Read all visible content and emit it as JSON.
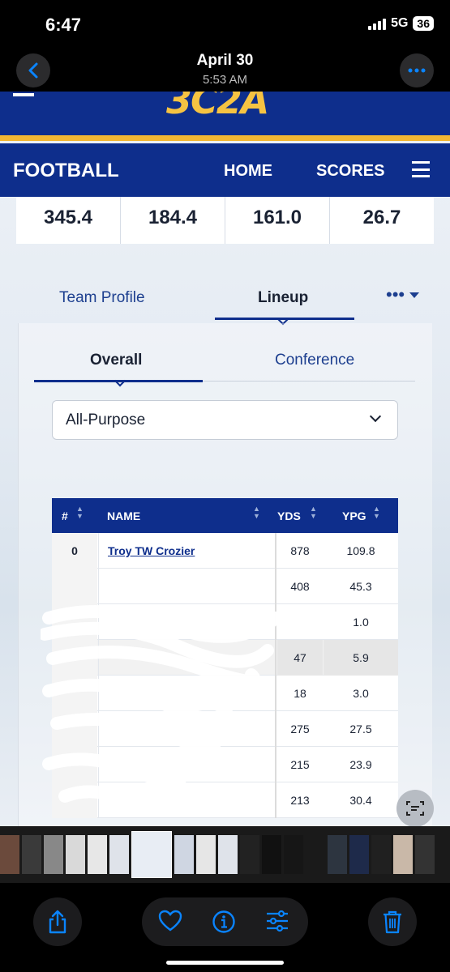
{
  "status_bar": {
    "time": "6:47",
    "network": "5G",
    "battery": "36"
  },
  "photos_header": {
    "title": "April 30",
    "subtitle": "5:53 AM"
  },
  "site": {
    "logo": "3C2A",
    "sport": "FOOTBALL",
    "nav": {
      "home": "HOME",
      "scores": "SCORES"
    },
    "stats": [
      "345.4",
      "184.4",
      "161.0",
      "26.7"
    ],
    "tabs": {
      "profile": "Team Profile",
      "lineup": "Lineup",
      "more": "•••"
    },
    "subtabs": {
      "overall": "Overall",
      "conference": "Conference"
    },
    "select_value": "All-Purpose",
    "table": {
      "headers": {
        "num": "#",
        "name": "NAME",
        "yds": "YDS",
        "ypg": "YPG"
      },
      "rows": [
        {
          "num": "0",
          "name": "Troy TW Crozier",
          "yds": "878",
          "ypg": "109.8"
        },
        {
          "num": "",
          "name": "",
          "yds": "408",
          "ypg": "45.3"
        },
        {
          "num": "",
          "name": "",
          "yds": "",
          "ypg": "1.0"
        },
        {
          "num": "",
          "name": "",
          "yds": "47",
          "ypg": "5.9"
        },
        {
          "num": "",
          "name": "",
          "yds": "18",
          "ypg": "3.0"
        },
        {
          "num": "",
          "name": "",
          "yds": "275",
          "ypg": "27.5"
        },
        {
          "num": "",
          "name": "",
          "yds": "215",
          "ypg": "23.9"
        },
        {
          "num": "",
          "name": "",
          "yds": "213",
          "ypg": "30.4"
        }
      ]
    }
  },
  "colors": {
    "brand_blue": "#0e2e8c",
    "gold": "#f2b632",
    "ios_blue": "#0a84ff"
  },
  "icons": [
    "back-chevron-icon",
    "ellipsis-icon",
    "share-icon",
    "heart-icon",
    "info-icon",
    "adjust-icon",
    "trash-icon",
    "live-text-icon"
  ]
}
